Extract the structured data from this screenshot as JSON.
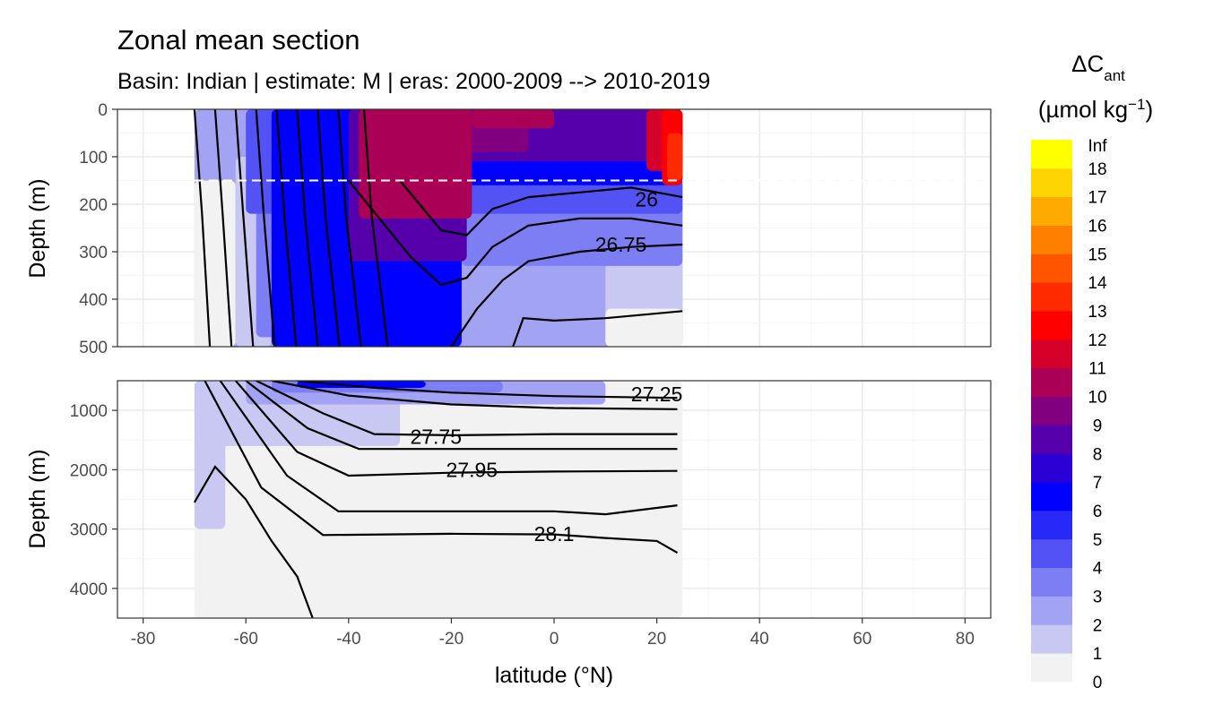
{
  "title": "Zonal mean section",
  "subtitle": "Basin: Indian | estimate: M  | eras: 2000-2009 --> 2010-2019",
  "colors": {
    "background": "#ffffff",
    "grid_major": "#ebebeb",
    "no_data": "#ffffff",
    "isopycnal": "#000000",
    "reference_line": "#ffffff"
  },
  "chart_data": {
    "type": "heatmap",
    "subtype": "filled contour section with isopycnal overlay, two vertically stacked depth panels",
    "xlabel": "latitude (°N)",
    "x_ticks": [
      -80,
      -60,
      -40,
      -20,
      0,
      20,
      40,
      60,
      80
    ],
    "x_tick_labels": [
      "-80",
      "-60",
      "-40",
      "-20",
      "0",
      "20",
      "40",
      "60",
      "80"
    ],
    "xlim": [
      -85,
      85
    ],
    "data_lat_range": [
      -70,
      25
    ],
    "grid": true,
    "panels": [
      {
        "name": "upper",
        "ylabel": "Depth (m)",
        "ylim": [
          0,
          500
        ],
        "y_reversed": true,
        "y_ticks": [
          0,
          100,
          200,
          300,
          400,
          500
        ],
        "y_tick_labels": [
          "0",
          "100",
          "200",
          "300",
          "400",
          "500"
        ],
        "reference_depth_m": 150,
        "reference_line_style": "dashed",
        "fill_regions": [
          {
            "level": "2-3",
            "lat": [
              -70,
              25
            ],
            "depth": [
              0,
              500
            ]
          },
          {
            "level": "0-1",
            "lat": [
              -70,
              -62
            ],
            "depth": [
              150,
              500
            ]
          },
          {
            "level": "1-2",
            "lat": [
              -62,
              -55
            ],
            "depth": [
              100,
              500
            ]
          },
          {
            "level": "1-2",
            "lat": [
              10,
              25
            ],
            "depth": [
              310,
              500
            ]
          },
          {
            "level": "0-1",
            "lat": [
              10,
              25
            ],
            "depth": [
              420,
              500
            ]
          },
          {
            "level": "3-4",
            "lat": [
              -58,
              -18
            ],
            "depth": [
              0,
              480
            ]
          },
          {
            "level": "3-4",
            "lat": [
              -18,
              25
            ],
            "depth": [
              150,
              330
            ]
          },
          {
            "level": "4-5",
            "lat": [
              -60,
              25
            ],
            "depth": [
              0,
              220
            ]
          },
          {
            "level": "6-7",
            "lat": [
              -55,
              -18
            ],
            "depth": [
              0,
              500
            ]
          },
          {
            "level": "6-7",
            "lat": [
              -18,
              25
            ],
            "depth": [
              0,
              160
            ]
          },
          {
            "level": "8-9",
            "lat": [
              -40,
              -17
            ],
            "depth": [
              0,
              320
            ]
          },
          {
            "level": "8-9",
            "lat": [
              -17,
              25
            ],
            "depth": [
              0,
              110
            ]
          },
          {
            "level": "9-10",
            "lat": [
              -38,
              -24
            ],
            "depth": [
              0,
              230
            ]
          },
          {
            "level": "9-10",
            "lat": [
              -24,
              -5
            ],
            "depth": [
              0,
              90
            ]
          },
          {
            "level": "10-11",
            "lat": [
              -38,
              -16
            ],
            "depth": [
              0,
              230
            ]
          },
          {
            "level": "10-11",
            "lat": [
              -16,
              0
            ],
            "depth": [
              0,
              40
            ]
          },
          {
            "level": "11-12",
            "lat": [
              18,
              25
            ],
            "depth": [
              0,
              130
            ]
          },
          {
            "level": "12-13",
            "lat": [
              21,
              25
            ],
            "depth": [
              0,
              160
            ]
          },
          {
            "level": "13-14",
            "lat": [
              22,
              25
            ],
            "depth": [
              50,
              150
            ]
          }
        ],
        "isopycnals": [
          {
            "label": "26",
            "label_lat": 18,
            "label_depth": 190,
            "points": [
              [
                -30,
                150
              ],
              [
                -22,
                255
              ],
              [
                -17,
                265
              ],
              [
                -12,
                210
              ],
              [
                -5,
                185
              ],
              [
                5,
                175
              ],
              [
                15,
                165
              ],
              [
                25,
                185
              ]
            ]
          },
          {
            "label": "",
            "points": [
              [
                -40,
                150
              ],
              [
                -28,
                310
              ],
              [
                -22,
                370
              ],
              [
                -17,
                355
              ],
              [
                -12,
                290
              ],
              [
                -5,
                245
              ],
              [
                5,
                230
              ],
              [
                15,
                230
              ],
              [
                25,
                245
              ]
            ]
          },
          {
            "label": "26.75",
            "label_lat": 13,
            "label_depth": 285,
            "points": [
              [
                -20,
                500
              ],
              [
                -15,
                420
              ],
              [
                -10,
                360
              ],
              [
                -5,
                320
              ],
              [
                5,
                300
              ],
              [
                15,
                290
              ],
              [
                25,
                285
              ]
            ]
          },
          {
            "label": "",
            "points": [
              [
                -8,
                500
              ],
              [
                -6,
                440
              ],
              [
                0,
                445
              ],
              [
                10,
                440
              ],
              [
                25,
                425
              ]
            ]
          }
        ],
        "descending_isopycnals_surface_lat": [
          -70,
          -66,
          -62,
          -58,
          -54,
          -50,
          -46,
          -42,
          -37
        ]
      },
      {
        "name": "lower",
        "ylabel": "Depth (m)",
        "ylim": [
          500,
          4500
        ],
        "y_reversed": true,
        "y_ticks": [
          1000,
          2000,
          3000,
          4000
        ],
        "y_tick_labels": [
          "1000",
          "2000",
          "3000",
          "4000"
        ],
        "fill_regions": [
          {
            "level": "0-1",
            "lat": [
              -70,
              25
            ],
            "depth": [
              500,
              4500
            ]
          },
          {
            "level": "1-2",
            "lat": [
              -70,
              -30
            ],
            "depth": [
              500,
              1600
            ]
          },
          {
            "level": "1-2",
            "lat": [
              -70,
              -64
            ],
            "depth": [
              500,
              3000
            ]
          },
          {
            "level": "2-3",
            "lat": [
              -60,
              10
            ],
            "depth": [
              500,
              900
            ]
          },
          {
            "level": "3-4",
            "lat": [
              -55,
              -10
            ],
            "depth": [
              500,
              700
            ]
          },
          {
            "level": "6-7",
            "lat": [
              -50,
              -25
            ],
            "depth": [
              500,
              620
            ]
          }
        ],
        "isopycnals": [
          {
            "label": "27.25",
            "label_lat": 20,
            "label_depth": 730,
            "points": [
              [
                -50,
                500
              ],
              [
                -35,
                620
              ],
              [
                -20,
                700
              ],
              [
                0,
                760
              ],
              [
                24,
                790
              ]
            ]
          },
          {
            "label": "",
            "points": [
              [
                -55,
                500
              ],
              [
                -40,
                750
              ],
              [
                -20,
                900
              ],
              [
                0,
                960
              ],
              [
                24,
                980
              ]
            ]
          },
          {
            "label": "27.75",
            "label_lat": -23,
            "label_depth": 1440,
            "points": [
              [
                -58,
                500
              ],
              [
                -45,
                1050
              ],
              [
                -35,
                1400
              ],
              [
                -20,
                1420
              ],
              [
                0,
                1400
              ],
              [
                24,
                1400
              ]
            ]
          },
          {
            "label": "",
            "points": [
              [
                -60,
                500
              ],
              [
                -48,
                1300
              ],
              [
                -38,
                1650
              ],
              [
                -20,
                1650
              ],
              [
                0,
                1650
              ],
              [
                24,
                1650
              ]
            ]
          },
          {
            "label": "27.95",
            "label_lat": -16,
            "label_depth": 2000,
            "points": [
              [
                -62,
                500
              ],
              [
                -50,
                1700
              ],
              [
                -40,
                2100
              ],
              [
                -20,
                2050
              ],
              [
                0,
                2030
              ],
              [
                24,
                2020
              ]
            ]
          },
          {
            "label": "",
            "points": [
              [
                -65,
                500
              ],
              [
                -52,
                2100
              ],
              [
                -42,
                2700
              ],
              [
                -20,
                2700
              ],
              [
                0,
                2700
              ],
              [
                10,
                2750
              ],
              [
                24,
                2600
              ]
            ]
          },
          {
            "label": "28.1",
            "label_lat": 0,
            "label_depth": 3080,
            "points": [
              [
                -68,
                500
              ],
              [
                -57,
                2300
              ],
              [
                -45,
                3100
              ],
              [
                -20,
                3080
              ],
              [
                0,
                3090
              ],
              [
                10,
                3150
              ],
              [
                20,
                3200
              ],
              [
                24,
                3400
              ]
            ]
          },
          {
            "label": "",
            "points": [
              [
                -70,
                2550
              ],
              [
                -66,
                1950
              ],
              [
                -60,
                2500
              ],
              [
                -55,
                3200
              ],
              [
                -50,
                3800
              ],
              [
                -47,
                4500
              ]
            ]
          }
        ]
      }
    ],
    "legend": {
      "title": "ΔCant (µmol kg⁻¹)",
      "title_main": "ΔC",
      "title_sub": "ant",
      "title_units_main": "(µmol kg",
      "title_units_sup": "−1",
      "title_units_end": ")",
      "placement": "right",
      "bin_edges": [
        "0",
        "1",
        "2",
        "3",
        "4",
        "5",
        "6",
        "7",
        "8",
        "9",
        "10",
        "11",
        "12",
        "13",
        "14",
        "15",
        "16",
        "17",
        "18",
        "Inf"
      ],
      "bin_colors": [
        "#f2f2f2",
        "#c8c8f2",
        "#a3a3f3",
        "#7d7df4",
        "#5252f5",
        "#2929f7",
        "#0000ff",
        "#2a00d4",
        "#5500aa",
        "#800080",
        "#aa0055",
        "#d4002a",
        "#ff0000",
        "#ff2a00",
        "#ff5500",
        "#ff8000",
        "#ffaa00",
        "#ffd400",
        "#ffff00"
      ]
    }
  }
}
